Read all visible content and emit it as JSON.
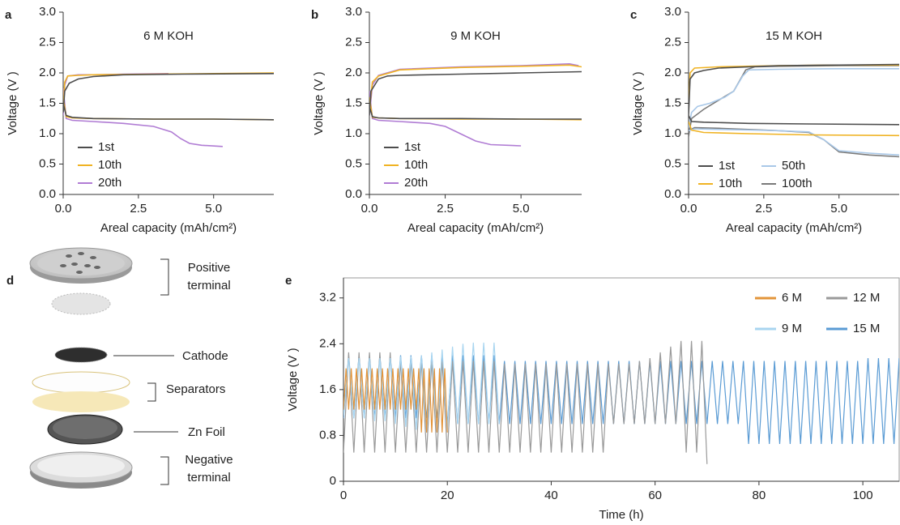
{
  "chart_data": [
    {
      "type": "line",
      "panel": "a",
      "title": "6 M KOH",
      "x_label": "Areal capacity (mAh/cm²)",
      "y_label": "Voltage (V )",
      "xlim": [
        0,
        7
      ],
      "ylim": [
        0,
        3
      ],
      "xticks": [
        {
          "value": 0,
          "label": "0.0"
        },
        2.5,
        {
          "value": 5,
          "label": "5.0"
        }
      ],
      "yticks": [
        {
          "value": 0,
          "label": "0.0"
        },
        0.5,
        {
          "value": 1,
          "label": "1.0"
        },
        1.5,
        {
          "value": 2,
          "label": "2.0"
        },
        2.5,
        {
          "value": 3,
          "label": "3.0"
        }
      ],
      "legend_columns": 1,
      "series": [
        {
          "name": "1st",
          "color": "#4d4d4d",
          "x": [
            0,
            0.05,
            0.2,
            0.5,
            1,
            2,
            4,
            7,
            null,
            0,
            0.1,
            0.3,
            1,
            3,
            5,
            7
          ],
          "values": [
            1.35,
            1.7,
            1.83,
            1.9,
            1.94,
            1.97,
            1.98,
            1.99,
            null,
            1.5,
            1.3,
            1.27,
            1.25,
            1.24,
            1.24,
            1.23
          ]
        },
        {
          "name": "10th",
          "color": "#f0b323",
          "x": [
            0,
            0.05,
            0.15,
            0.5,
            1,
            3,
            5,
            7,
            null,
            0,
            0.1,
            0.3,
            1,
            3,
            5,
            7
          ],
          "values": [
            1.4,
            1.85,
            1.95,
            1.96,
            1.97,
            1.98,
            1.99,
            2.0,
            null,
            1.6,
            1.28,
            1.26,
            1.25,
            1.24,
            1.24,
            1.23
          ]
        },
        {
          "name": "20th",
          "color": "#b07cd4",
          "x": [
            0,
            0.05,
            0.15,
            0.5,
            1,
            2,
            3.5,
            null,
            0,
            0.1,
            0.3,
            1,
            2,
            3,
            3.6,
            3.9,
            4.2,
            4.6,
            5.3
          ],
          "values": [
            1.3,
            1.8,
            1.95,
            1.97,
            1.97,
            1.98,
            1.99,
            null,
            1.75,
            1.25,
            1.22,
            1.2,
            1.17,
            1.12,
            1.03,
            0.92,
            0.84,
            0.81,
            0.79
          ]
        }
      ]
    },
    {
      "type": "line",
      "panel": "b",
      "title": "9 M KOH",
      "x_label": "Areal capacity (mAh/cm²)",
      "y_label": "Voltage (V )",
      "xlim": [
        0,
        7
      ],
      "ylim": [
        0,
        3
      ],
      "xticks": [
        {
          "value": 0,
          "label": "0.0"
        },
        2.5,
        {
          "value": 5,
          "label": "5.0"
        }
      ],
      "yticks": [
        {
          "value": 0,
          "label": "0.0"
        },
        0.5,
        {
          "value": 1,
          "label": "1.0"
        },
        1.5,
        {
          "value": 2,
          "label": "2.0"
        },
        2.5,
        {
          "value": 3,
          "label": "3.0"
        }
      ],
      "legend_columns": 1,
      "series": [
        {
          "name": "1st",
          "color": "#4d4d4d",
          "x": [
            0,
            0.05,
            0.3,
            0.6,
            1,
            3,
            5,
            7,
            null,
            0,
            0.1,
            0.3,
            1,
            3,
            5,
            7
          ],
          "values": [
            1.3,
            1.7,
            1.9,
            1.95,
            1.96,
            1.98,
            2.0,
            2.02,
            null,
            1.45,
            1.28,
            1.26,
            1.25,
            1.25,
            1.24,
            1.24
          ]
        },
        {
          "name": "10th",
          "color": "#f0b323",
          "x": [
            0,
            0.1,
            0.3,
            1,
            3,
            5,
            6.6,
            7,
            null,
            0,
            0.1,
            0.3,
            1,
            3,
            5,
            7
          ],
          "values": [
            1.4,
            1.85,
            1.95,
            2.05,
            2.09,
            2.11,
            2.13,
            2.1,
            null,
            1.6,
            1.27,
            1.26,
            1.25,
            1.24,
            1.24,
            1.23
          ]
        },
        {
          "name": "20th",
          "color": "#b07cd4",
          "x": [
            0,
            0.1,
            0.3,
            1,
            3,
            5,
            6.6,
            6.9,
            null,
            0,
            0.1,
            0.3,
            1,
            2,
            2.5,
            3,
            3.5,
            4,
            5
          ],
          "values": [
            1.3,
            1.8,
            1.96,
            2.06,
            2.1,
            2.12,
            2.15,
            2.12,
            null,
            1.7,
            1.25,
            1.22,
            1.2,
            1.17,
            1.12,
            1.0,
            0.88,
            0.82,
            0.8
          ]
        }
      ]
    },
    {
      "type": "line",
      "panel": "c",
      "title": "15 M KOH",
      "x_label": "Areal capacity (mAh/cm²)",
      "y_label": "Voltage (V )",
      "xlim": [
        0,
        7
      ],
      "ylim": [
        0,
        3
      ],
      "xticks": [
        {
          "value": 0,
          "label": "0.0"
        },
        2.5,
        {
          "value": 5,
          "label": "5.0"
        }
      ],
      "yticks": [
        {
          "value": 0,
          "label": "0.0"
        },
        0.5,
        {
          "value": 1,
          "label": "1.0"
        },
        1.5,
        {
          "value": 2,
          "label": "2.0"
        },
        2.5,
        {
          "value": 3,
          "label": "3.0"
        }
      ],
      "legend_columns": 2,
      "series": [
        {
          "name": "1st",
          "color": "#4d4d4d",
          "x": [
            0,
            0.05,
            0.2,
            0.5,
            1,
            3,
            5,
            7,
            null,
            0,
            0.1,
            0.5,
            2,
            4,
            7
          ],
          "values": [
            1.3,
            1.9,
            2.0,
            2.04,
            2.08,
            2.12,
            2.13,
            2.14,
            null,
            1.3,
            1.2,
            1.19,
            1.17,
            1.16,
            1.15
          ]
        },
        {
          "name": "10th",
          "color": "#f0b323",
          "x": [
            0,
            0.05,
            0.2,
            1,
            3,
            5,
            7,
            null,
            0,
            0.1,
            0.5,
            2,
            4,
            7
          ],
          "values": [
            1.5,
            2.0,
            2.08,
            2.1,
            2.12,
            2.13,
            2.13,
            null,
            1.2,
            1.06,
            1.02,
            1.0,
            0.98,
            0.97
          ]
        },
        {
          "name": "50th",
          "color": "#a9c8e8",
          "x": [
            0,
            0.1,
            0.3,
            0.7,
            1.2,
            1.5,
            1.8,
            2.0,
            3,
            5,
            7,
            null,
            0,
            0.2,
            1,
            2,
            3,
            4,
            4.5,
            5,
            6,
            7
          ],
          "values": [
            1.1,
            1.35,
            1.45,
            1.5,
            1.6,
            1.7,
            1.95,
            2.05,
            2.06,
            2.07,
            2.07,
            null,
            1.05,
            1.08,
            1.07,
            1.06,
            1.05,
            1.03,
            0.9,
            0.72,
            0.68,
            0.65
          ]
        },
        {
          "name": "100th",
          "color": "#7a7a7a",
          "x": [
            0,
            0.1,
            0.5,
            1,
            1.5,
            1.9,
            2.2,
            3,
            5,
            7,
            null,
            0,
            0.2,
            1,
            2,
            3,
            4,
            4.5,
            5,
            6,
            7
          ],
          "values": [
            0.95,
            1.25,
            1.4,
            1.55,
            1.7,
            2.05,
            2.1,
            2.11,
            2.12,
            2.12,
            null,
            1.05,
            1.1,
            1.09,
            1.07,
            1.05,
            1.02,
            0.9,
            0.7,
            0.65,
            0.62
          ]
        }
      ]
    },
    {
      "type": "line",
      "panel": "e",
      "x_label": "Time (h)",
      "y_label": "Voltage (V )",
      "xlim": [
        0,
        107
      ],
      "ylim": [
        0,
        3.55
      ],
      "xticks": [
        0,
        20,
        40,
        60,
        80,
        100
      ],
      "yticks": [
        0,
        0.8,
        1.6,
        2.4,
        3.2
      ],
      "legend_columns": 2,
      "series": [
        {
          "name": "6 M",
          "color": "#e3943a",
          "x": [
            0,
            0.5,
            1,
            1.5,
            2,
            2.5,
            3,
            3.5,
            4,
            4.5,
            5,
            5.5,
            6,
            6.5,
            7,
            7.5,
            8,
            8.5,
            9,
            9.5,
            10,
            10.5,
            11,
            11.5,
            12,
            12.5,
            13,
            13.5,
            14,
            14.5,
            15,
            15.5,
            16,
            16.5,
            17,
            17.5,
            18,
            18.5,
            19,
            19.5,
            20
          ],
          "values": [
            1.25,
            1.97,
            1.25,
            1.97,
            1.25,
            1.97,
            1.25,
            1.97,
            1.25,
            1.97,
            1.25,
            1.97,
            1.25,
            1.97,
            1.25,
            1.97,
            1.25,
            1.97,
            1.25,
            1.97,
            1.25,
            1.97,
            1.25,
            1.97,
            1.25,
            1.97,
            1.25,
            1.97,
            1.25,
            1.97,
            0.85,
            1.97,
            0.85,
            1.97,
            0.85,
            1.97,
            0.85,
            1.97,
            0.85,
            1.97,
            0.85
          ]
        },
        {
          "name": "9 M",
          "color": "#a8d5f0",
          "x": [
            0,
            1,
            2,
            3,
            4,
            5,
            6,
            7,
            8,
            9,
            10,
            11,
            12,
            13,
            14,
            15,
            16,
            17,
            18,
            19,
            20,
            21,
            22,
            23,
            24,
            25,
            26,
            27,
            28,
            29,
            30
          ],
          "values": [
            1.15,
            2.15,
            1.1,
            2.15,
            1.1,
            2.15,
            1.05,
            2.15,
            1.05,
            2.15,
            1.0,
            2.18,
            0.95,
            2.18,
            0.9,
            2.2,
            0.85,
            2.25,
            0.85,
            2.3,
            0.9,
            2.35,
            1.0,
            2.4,
            1.0,
            2.42,
            1.0,
            2.42,
            1.0,
            2.42,
            1.0
          ]
        },
        {
          "name": "12 M",
          "color": "#9a9a9a",
          "x": [
            0,
            1,
            2,
            3,
            4,
            5,
            6,
            7,
            8,
            9,
            10,
            11,
            12,
            13,
            14,
            15,
            16,
            17,
            18,
            19,
            20,
            21,
            22,
            23,
            24,
            25,
            26,
            27,
            28,
            29,
            30,
            31,
            32,
            33,
            34,
            35,
            36,
            37,
            38,
            39,
            40,
            41,
            42,
            43,
            44,
            45,
            46,
            47,
            48,
            49,
            50,
            51,
            52,
            53,
            54,
            55,
            56,
            57,
            58,
            59,
            60,
            61,
            62,
            63,
            64,
            65,
            66,
            67,
            68,
            69,
            70
          ],
          "values": [
            0.5,
            2.25,
            0.5,
            2.25,
            0.5,
            2.25,
            0.5,
            2.25,
            0.5,
            2.25,
            0.5,
            2.1,
            0.5,
            2.1,
            0.5,
            2.1,
            0.5,
            2.1,
            0.5,
            2.1,
            0.5,
            2.1,
            0.5,
            2.1,
            0.5,
            2.1,
            0.5,
            2.1,
            0.5,
            2.1,
            0.5,
            2.05,
            0.5,
            2.05,
            0.5,
            2.05,
            0.5,
            2.05,
            0.5,
            2.05,
            0.5,
            2.05,
            0.5,
            2.05,
            0.5,
            2.05,
            0.5,
            2.05,
            0.5,
            2.05,
            0.5,
            2.05,
            1.0,
            2.05,
            1.0,
            2.05,
            1.0,
            2.1,
            1.0,
            2.15,
            1.0,
            2.25,
            1.0,
            2.35,
            1.0,
            2.45,
            0.5,
            2.45,
            0.5,
            2.45,
            0.3
          ]
        },
        {
          "name": "15 M",
          "color": "#5a9bd4",
          "x": [
            0,
            1,
            2,
            3,
            4,
            5,
            6,
            7,
            8,
            9,
            10,
            11,
            12,
            13,
            14,
            15,
            16,
            17,
            18,
            19,
            20,
            21,
            22,
            23,
            24,
            25,
            26,
            27,
            28,
            29,
            30,
            31,
            32,
            33,
            34,
            35,
            36,
            37,
            38,
            39,
            40,
            41,
            42,
            43,
            44,
            45,
            46,
            47,
            48,
            49,
            50,
            51,
            52,
            53,
            54,
            55,
            56,
            57,
            58,
            59,
            60,
            61,
            62,
            63,
            64,
            65,
            66,
            67,
            68,
            69,
            70,
            71,
            72,
            73,
            74,
            75,
            76,
            77,
            78,
            79,
            80,
            81,
            82,
            83,
            84,
            85,
            86,
            87,
            88,
            89,
            90,
            91,
            92,
            93,
            94,
            95,
            96,
            97,
            98,
            99,
            100,
            101,
            102,
            103,
            104,
            105,
            106,
            107
          ],
          "values": [
            1.1,
            2.2,
            1.1,
            2.2,
            1.1,
            2.2,
            1.1,
            2.2,
            1.1,
            2.2,
            1.1,
            2.2,
            1.1,
            2.2,
            1.1,
            2.2,
            1.1,
            2.2,
            1.1,
            2.2,
            1.0,
            2.2,
            1.0,
            2.2,
            1.0,
            2.2,
            1.0,
            2.2,
            1.0,
            2.2,
            1.0,
            2.1,
            1.0,
            2.1,
            1.0,
            2.1,
            1.0,
            2.1,
            1.0,
            2.1,
            1.0,
            2.1,
            1.0,
            2.1,
            1.0,
            2.1,
            1.0,
            2.1,
            1.0,
            2.1,
            1.0,
            2.1,
            1.0,
            2.1,
            1.0,
            2.1,
            1.0,
            2.1,
            1.0,
            2.1,
            1.0,
            2.1,
            1.0,
            2.1,
            1.0,
            2.1,
            1.0,
            2.1,
            1.0,
            2.1,
            1.0,
            2.1,
            1.0,
            2.1,
            1.0,
            2.1,
            1.0,
            2.1,
            0.65,
            2.1,
            0.65,
            2.1,
            0.65,
            2.1,
            0.65,
            2.1,
            0.65,
            2.1,
            0.65,
            2.1,
            0.65,
            2.1,
            0.65,
            2.1,
            0.65,
            2.1,
            0.65,
            2.1,
            0.65,
            2.1,
            0.65,
            2.15,
            0.65,
            2.15,
            0.65,
            2.15,
            0.65,
            2.15
          ]
        }
      ]
    }
  ],
  "diagram": {
    "panel": "d",
    "positive_terminal": [
      "Positive",
      "terminal"
    ],
    "cathode": "Cathode",
    "separators": "Separators",
    "zn_foil": "Zn Foil",
    "negative_terminal": [
      "Negative",
      "terminal"
    ]
  }
}
